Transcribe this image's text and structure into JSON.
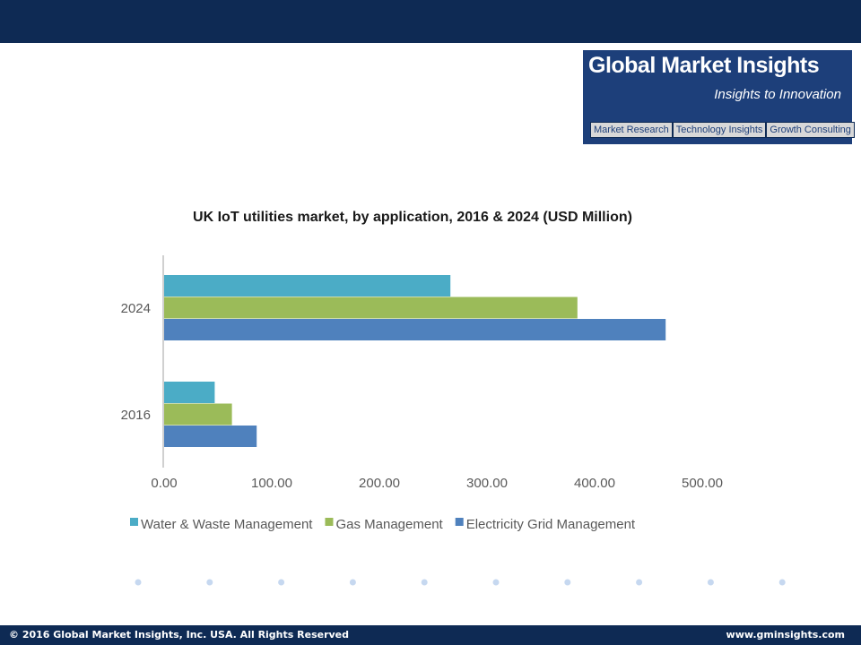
{
  "logo": {
    "title": "Global Market Insights",
    "tagline": "Insights to Innovation",
    "tabs": [
      "Market Research",
      "Technology Insights",
      "Growth Consulting"
    ]
  },
  "colors": {
    "header": "#0e2a54",
    "logo_bg": "#1d3f7a",
    "series": [
      "#4bacc6",
      "#9bbb59",
      "#4f81bd"
    ],
    "dots": "#c6d8f0"
  },
  "chart_data": {
    "type": "bar",
    "orientation": "horizontal",
    "title": "UK IoT utilities market, by application, 2016 & 2024 (USD Million)",
    "categories": [
      "2024",
      "2016"
    ],
    "series": [
      {
        "name": "Water & Waste Management",
        "values": [
          266,
          47
        ]
      },
      {
        "name": "Gas Management",
        "values": [
          384,
          63
        ]
      },
      {
        "name": "Electricity Grid Management",
        "values": [
          466,
          86
        ]
      }
    ],
    "xlim": [
      0,
      500
    ],
    "xticks": [
      "0.00",
      "100.00",
      "200.00",
      "300.00",
      "400.00",
      "500.00"
    ],
    "xlabel": "",
    "ylabel": "",
    "grid": false,
    "legend": "bottom"
  },
  "footer": {
    "left": "© 2016 Global Market Insights, Inc. USA.  All Rights Reserved",
    "right": "www.gminsights.com"
  }
}
